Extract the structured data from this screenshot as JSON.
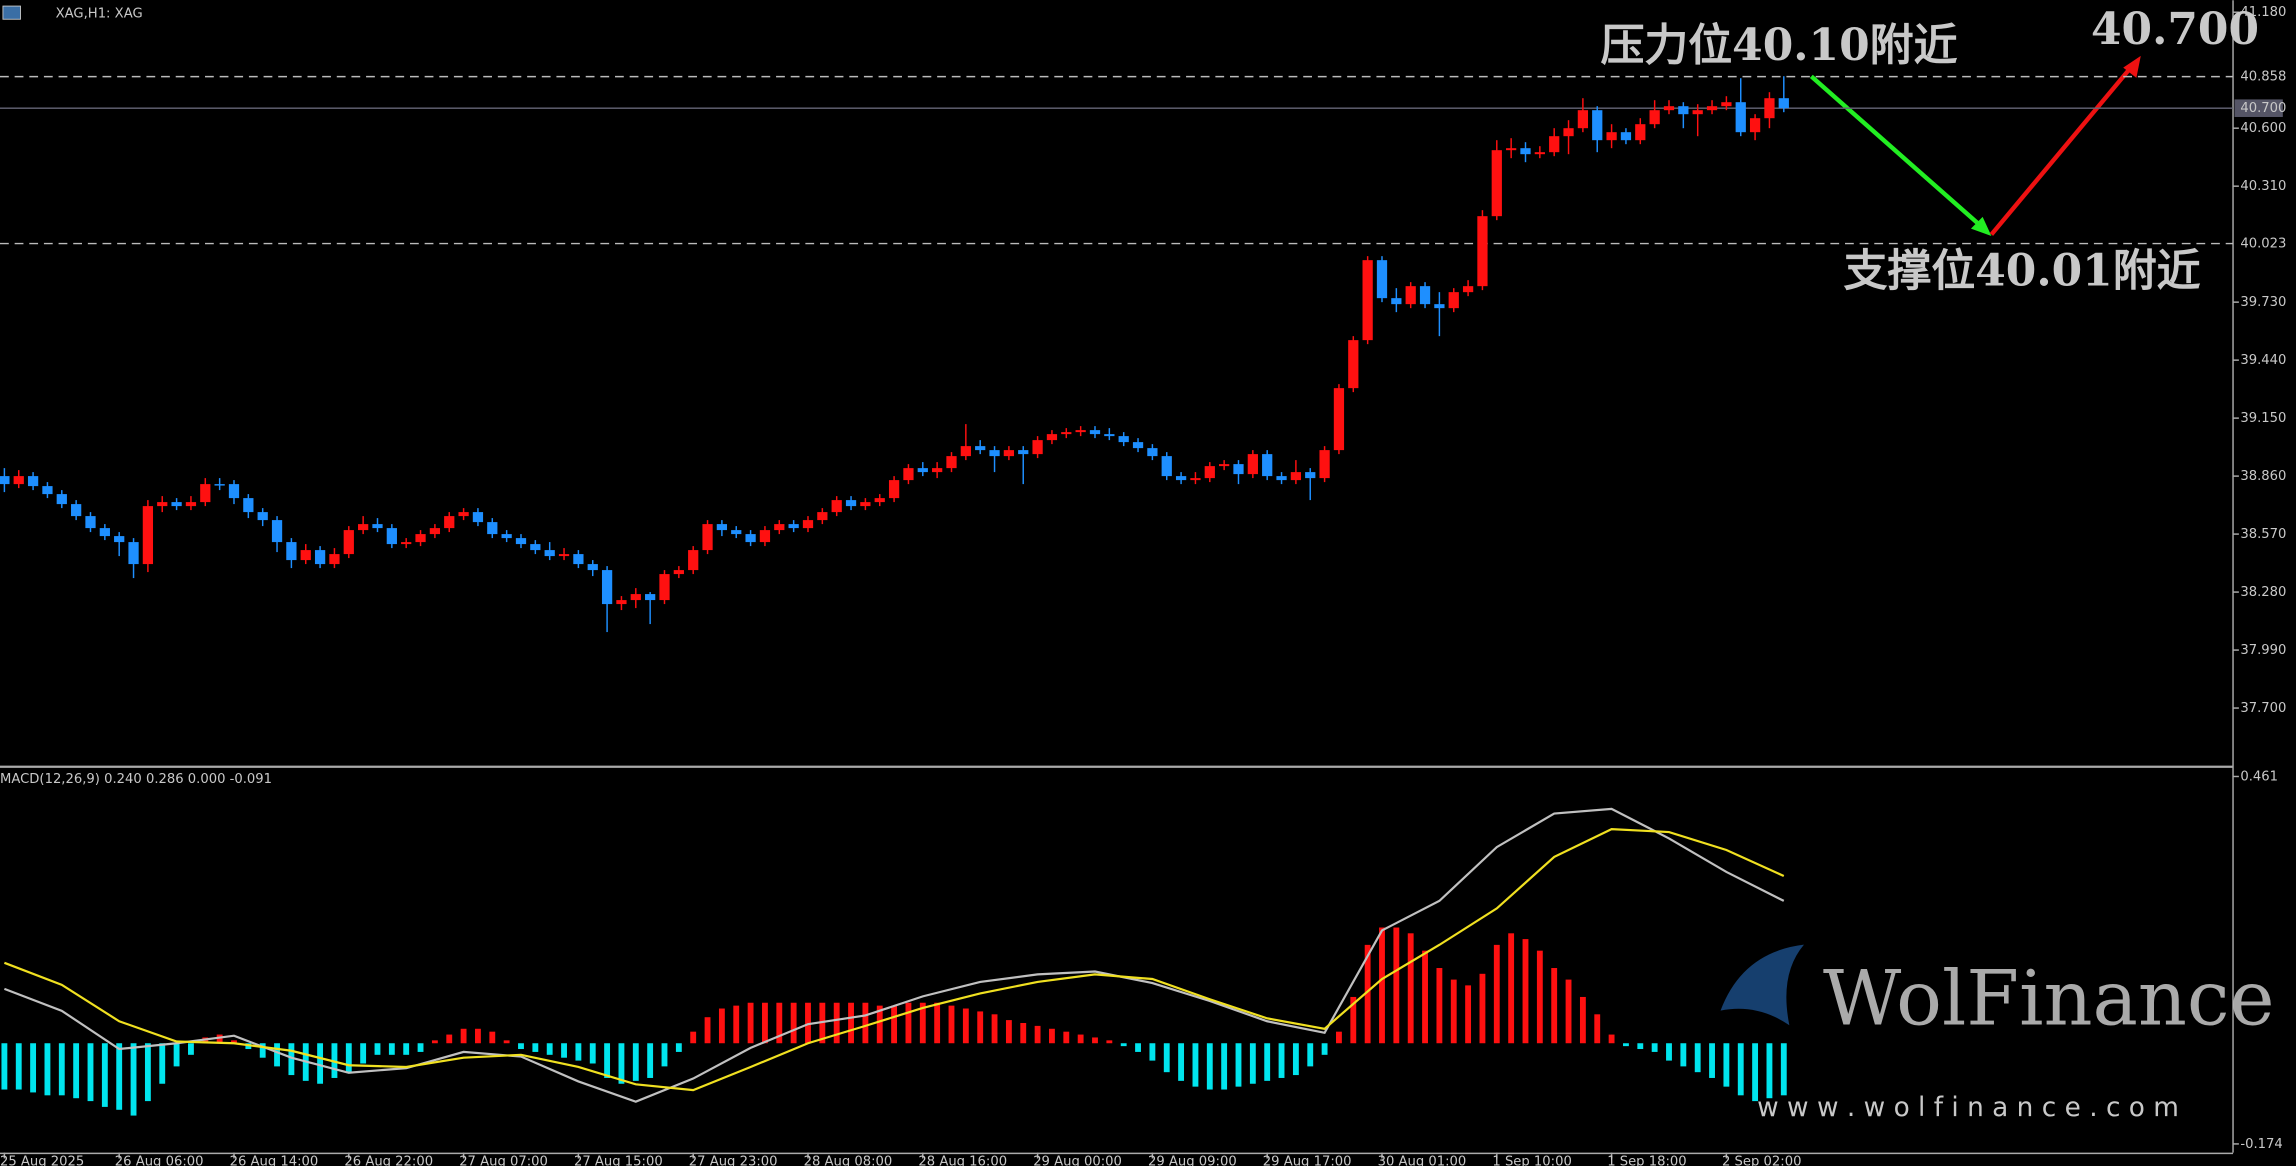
{
  "chart_data": [
    {
      "type": "candlestick",
      "title": "XAG,H1: XAG",
      "categories": [
        "25 Aug 2025",
        null,
        null,
        null,
        null,
        null,
        null,
        null,
        "26 Aug 06:00",
        null,
        null,
        null,
        null,
        null,
        null,
        null,
        "26 Aug 14:00",
        null,
        null,
        null,
        null,
        null,
        null,
        null,
        "26 Aug 22:00",
        null,
        null,
        null,
        null,
        null,
        null,
        null,
        "27 Aug 07:00",
        null,
        null,
        null,
        null,
        null,
        null,
        null,
        "27 Aug 15:00",
        null,
        null,
        null,
        null,
        null,
        null,
        null,
        "27 Aug 23:00",
        null,
        null,
        null,
        null,
        null,
        null,
        null,
        "28 Aug 08:00",
        null,
        null,
        null,
        null,
        null,
        null,
        null,
        "28 Aug 16:00",
        null,
        null,
        null,
        null,
        null,
        null,
        null,
        "29 Aug 00:00",
        null,
        null,
        null,
        null,
        null,
        null,
        null,
        "29 Aug 09:00",
        null,
        null,
        null,
        null,
        null,
        null,
        null,
        "29 Aug 17:00",
        null,
        null,
        null,
        null,
        null,
        null,
        null,
        "30 Aug 01:00",
        null,
        null,
        null,
        null,
        null,
        null,
        null,
        "1 Sep 10:00",
        null,
        null,
        null,
        null,
        null,
        null,
        null,
        "1 Sep 18:00",
        null,
        null,
        null,
        null,
        null,
        null,
        null,
        "2 Sep 02:00",
        null,
        null,
        null,
        null
      ],
      "ohlc": [
        [
          38.86,
          38.9,
          38.78,
          38.82
        ],
        [
          38.82,
          38.89,
          38.8,
          38.86
        ],
        [
          38.86,
          38.88,
          38.79,
          38.81
        ],
        [
          38.81,
          38.83,
          38.75,
          38.77
        ],
        [
          38.77,
          38.79,
          38.7,
          38.72
        ],
        [
          38.72,
          38.74,
          38.64,
          38.66
        ],
        [
          38.66,
          38.68,
          38.58,
          38.6
        ],
        [
          38.6,
          38.62,
          38.54,
          38.56
        ],
        [
          38.56,
          38.58,
          38.46,
          38.53
        ],
        [
          38.53,
          38.55,
          38.35,
          38.42
        ],
        [
          38.42,
          38.74,
          38.38,
          38.71
        ],
        [
          38.71,
          38.76,
          38.68,
          38.73
        ],
        [
          38.73,
          38.75,
          38.69,
          38.71
        ],
        [
          38.71,
          38.76,
          38.69,
          38.73
        ],
        [
          38.73,
          38.85,
          38.71,
          38.82
        ],
        [
          38.82,
          38.85,
          38.79,
          38.82
        ],
        [
          38.82,
          38.84,
          38.72,
          38.75
        ],
        [
          38.75,
          38.77,
          38.65,
          38.68
        ],
        [
          38.68,
          38.7,
          38.61,
          38.64
        ],
        [
          38.64,
          38.66,
          38.48,
          38.53
        ],
        [
          38.53,
          38.55,
          38.4,
          38.44
        ],
        [
          38.44,
          38.52,
          38.42,
          38.49
        ],
        [
          38.49,
          38.51,
          38.4,
          38.42
        ],
        [
          38.42,
          38.5,
          38.4,
          38.47
        ],
        [
          38.47,
          38.61,
          38.45,
          38.59
        ],
        [
          38.59,
          38.66,
          38.57,
          38.62
        ],
        [
          38.62,
          38.65,
          38.58,
          38.6
        ],
        [
          38.6,
          38.62,
          38.5,
          38.52
        ],
        [
          38.52,
          38.55,
          38.5,
          38.53
        ],
        [
          38.53,
          38.59,
          38.51,
          38.57
        ],
        [
          38.57,
          38.62,
          38.55,
          38.6
        ],
        [
          38.6,
          38.68,
          38.58,
          38.66
        ],
        [
          38.66,
          38.7,
          38.64,
          38.68
        ],
        [
          38.68,
          38.7,
          38.61,
          38.63
        ],
        [
          38.63,
          38.65,
          38.55,
          38.57
        ],
        [
          38.57,
          38.59,
          38.53,
          38.55
        ],
        [
          38.55,
          38.57,
          38.5,
          38.52
        ],
        [
          38.52,
          38.54,
          38.47,
          38.49
        ],
        [
          38.49,
          38.53,
          38.44,
          38.46
        ],
        [
          38.46,
          38.5,
          38.44,
          38.47
        ],
        [
          38.47,
          38.49,
          38.4,
          38.42
        ],
        [
          38.42,
          38.44,
          38.36,
          38.39
        ],
        [
          38.39,
          38.41,
          38.08,
          38.22
        ],
        [
          38.22,
          38.26,
          38.19,
          38.24
        ],
        [
          38.24,
          38.3,
          38.2,
          38.27
        ],
        [
          38.27,
          38.28,
          38.12,
          38.24
        ],
        [
          38.24,
          38.39,
          38.22,
          38.37
        ],
        [
          38.37,
          38.41,
          38.35,
          38.39
        ],
        [
          38.39,
          38.51,
          38.37,
          38.49
        ],
        [
          38.49,
          38.64,
          38.47,
          38.62
        ],
        [
          38.62,
          38.64,
          38.56,
          38.59
        ],
        [
          38.59,
          38.61,
          38.55,
          38.57
        ],
        [
          38.57,
          38.59,
          38.51,
          38.53
        ],
        [
          38.53,
          38.61,
          38.51,
          38.59
        ],
        [
          38.59,
          38.64,
          38.57,
          38.62
        ],
        [
          38.62,
          38.64,
          38.58,
          38.6
        ],
        [
          38.6,
          38.66,
          38.58,
          38.64
        ],
        [
          38.64,
          38.7,
          38.62,
          38.68
        ],
        [
          38.68,
          38.76,
          38.66,
          38.74
        ],
        [
          38.74,
          38.76,
          38.69,
          38.71
        ],
        [
          38.71,
          38.75,
          38.69,
          38.73
        ],
        [
          38.73,
          38.77,
          38.71,
          38.75
        ],
        [
          38.75,
          38.86,
          38.73,
          38.84
        ],
        [
          38.84,
          38.92,
          38.82,
          38.9
        ],
        [
          38.9,
          38.93,
          38.86,
          38.88
        ],
        [
          38.88,
          38.93,
          38.85,
          38.9
        ],
        [
          38.9,
          38.98,
          38.88,
          38.96
        ],
        [
          38.96,
          39.12,
          38.94,
          39.01
        ],
        [
          39.01,
          39.04,
          38.97,
          38.99
        ],
        [
          38.99,
          39.01,
          38.88,
          38.96
        ],
        [
          38.96,
          39.01,
          38.94,
          38.99
        ],
        [
          38.99,
          39.01,
          38.82,
          38.97
        ],
        [
          38.97,
          39.06,
          38.95,
          39.04
        ],
        [
          39.04,
          39.09,
          39.02,
          39.07
        ],
        [
          39.07,
          39.1,
          39.05,
          39.08
        ],
        [
          39.08,
          39.11,
          39.06,
          39.09
        ],
        [
          39.09,
          39.11,
          39.05,
          39.07
        ],
        [
          39.07,
          39.1,
          39.04,
          39.06
        ],
        [
          39.06,
          39.08,
          39.01,
          39.03
        ],
        [
          39.03,
          39.05,
          38.98,
          39.0
        ],
        [
          39.0,
          39.02,
          38.94,
          38.96
        ],
        [
          38.96,
          38.98,
          38.84,
          38.86
        ],
        [
          38.86,
          38.88,
          38.82,
          38.84
        ],
        [
          38.84,
          38.88,
          38.82,
          38.85
        ],
        [
          38.85,
          38.93,
          38.83,
          38.91
        ],
        [
          38.91,
          38.94,
          38.89,
          38.92
        ],
        [
          38.92,
          38.94,
          38.82,
          38.87
        ],
        [
          38.87,
          38.99,
          38.85,
          38.97
        ],
        [
          38.97,
          38.99,
          38.84,
          38.86
        ],
        [
          38.86,
          38.88,
          38.82,
          38.84
        ],
        [
          38.84,
          38.94,
          38.82,
          38.88
        ],
        [
          38.88,
          38.9,
          38.74,
          38.85
        ],
        [
          38.85,
          39.01,
          38.83,
          38.99
        ],
        [
          38.99,
          39.32,
          38.97,
          39.3
        ],
        [
          39.3,
          39.56,
          39.28,
          39.54
        ],
        [
          39.54,
          39.96,
          39.52,
          39.94
        ],
        [
          39.94,
          39.96,
          39.73,
          39.75
        ],
        [
          39.75,
          39.8,
          39.68,
          39.72
        ],
        [
          39.72,
          39.83,
          39.7,
          39.81
        ],
        [
          39.81,
          39.83,
          39.7,
          39.72
        ],
        [
          39.72,
          39.78,
          39.56,
          39.7
        ],
        [
          39.7,
          39.8,
          39.68,
          39.78
        ],
        [
          39.78,
          39.84,
          39.76,
          39.81
        ],
        [
          39.81,
          40.19,
          39.79,
          40.16
        ],
        [
          40.16,
          40.54,
          40.14,
          40.49
        ],
        [
          40.49,
          40.55,
          40.45,
          40.5
        ],
        [
          40.5,
          40.53,
          40.43,
          40.47
        ],
        [
          40.47,
          40.51,
          40.45,
          40.48
        ],
        [
          40.48,
          40.6,
          40.46,
          40.56
        ],
        [
          40.56,
          40.64,
          40.47,
          40.6
        ],
        [
          40.6,
          40.75,
          40.58,
          40.69
        ],
        [
          40.69,
          40.71,
          40.48,
          40.54
        ],
        [
          40.54,
          40.62,
          40.5,
          40.58
        ],
        [
          40.58,
          40.6,
          40.52,
          40.54
        ],
        [
          40.54,
          40.65,
          40.52,
          40.62
        ],
        [
          40.62,
          40.74,
          40.6,
          40.69
        ],
        [
          40.69,
          40.74,
          40.67,
          40.71
        ],
        [
          40.71,
          40.73,
          40.6,
          40.67
        ],
        [
          40.67,
          40.72,
          40.56,
          40.69
        ],
        [
          40.69,
          40.74,
          40.67,
          40.71
        ],
        [
          40.71,
          40.76,
          40.69,
          40.73
        ],
        [
          40.73,
          40.85,
          40.56,
          40.58
        ],
        [
          40.58,
          40.67,
          40.54,
          40.65
        ],
        [
          40.65,
          40.78,
          40.6,
          40.75
        ],
        [
          40.75,
          40.86,
          40.68,
          40.7
        ]
      ],
      "up_color": "#ff1010",
      "down_color": "#1e8fff",
      "ylim": [
        37.41,
        41.24
      ],
      "yticks": [
        {
          "value": 41.18,
          "label": "41.180"
        },
        {
          "value": 40.6,
          "label": "40.600"
        },
        {
          "value": 40.31,
          "label": "40.310"
        },
        {
          "value": 39.73,
          "label": "39.730"
        },
        {
          "value": 39.44,
          "label": "39.440"
        },
        {
          "value": 39.15,
          "label": "39.150"
        },
        {
          "value": 38.86,
          "label": "38.860"
        },
        {
          "value": 38.57,
          "label": "38.570"
        },
        {
          "value": 38.28,
          "label": "38.280"
        },
        {
          "value": 37.99,
          "label": "37.990"
        },
        {
          "value": 37.7,
          "label": "37.700"
        }
      ],
      "levels": [
        {
          "value": 40.858,
          "label": "40.858",
          "dashed": true
        },
        {
          "value": 40.7,
          "label": "40.700",
          "dashed": false
        },
        {
          "value": 40.023,
          "label": "40.023",
          "dashed": true
        }
      ],
      "annotations": [
        {
          "text": "压力位40.10附近",
          "color": "#ffffff"
        },
        {
          "text": "支撑位40.01附近",
          "color": "#ff1a1a"
        },
        {
          "text": "40.700",
          "color": "#7fff00"
        }
      ]
    },
    {
      "type": "macd",
      "title": "MACD(12,26,9) 0.240 0.286 0.000 -0.091",
      "values": [
        -0.08,
        -0.08,
        -0.085,
        -0.09,
        -0.09,
        -0.095,
        -0.1,
        -0.11,
        -0.115,
        -0.125,
        -0.1,
        -0.07,
        -0.04,
        -0.02,
        0.01,
        0.015,
        0.005,
        -0.01,
        -0.025,
        -0.04,
        -0.055,
        -0.065,
        -0.07,
        -0.06,
        -0.05,
        -0.035,
        -0.02,
        -0.02,
        -0.02,
        -0.015,
        0.005,
        0.015,
        0.025,
        0.025,
        0.02,
        0.005,
        -0.01,
        -0.015,
        -0.02,
        -0.025,
        -0.03,
        -0.035,
        -0.06,
        -0.07,
        -0.065,
        -0.06,
        -0.04,
        -0.015,
        0.02,
        0.045,
        0.06,
        0.065,
        0.07,
        0.07,
        0.07,
        0.07,
        0.07,
        0.07,
        0.07,
        0.07,
        0.07,
        0.065,
        0.065,
        0.07,
        0.07,
        0.07,
        0.065,
        0.06,
        0.055,
        0.05,
        0.04,
        0.035,
        0.03,
        0.025,
        0.02,
        0.015,
        0.01,
        0.005,
        -0.005,
        -0.015,
        -0.03,
        -0.05,
        -0.065,
        -0.075,
        -0.08,
        -0.08,
        -0.075,
        -0.07,
        -0.065,
        -0.06,
        -0.055,
        -0.04,
        -0.02,
        0.02,
        0.08,
        0.17,
        0.2,
        0.2,
        0.19,
        0.16,
        0.13,
        0.11,
        0.1,
        0.12,
        0.17,
        0.19,
        0.18,
        0.16,
        0.13,
        0.11,
        0.08,
        0.05,
        0.015,
        -0.005,
        -0.01,
        -0.015,
        -0.03,
        -0.04,
        -0.05,
        -0.06,
        -0.075,
        -0.09,
        -0.1,
        -0.095,
        -0.09
      ],
      "up_color": "#ff1010",
      "down_color": "#00e5ee",
      "series": [
        {
          "color": "#c0c0c0",
          "x": [
            0,
            4,
            8,
            12,
            16,
            20,
            24,
            28,
            32,
            36,
            40,
            44,
            48,
            52,
            56,
            60,
            64,
            68,
            72,
            76,
            80,
            84,
            88,
            92,
            96,
            100,
            104,
            108,
            112,
            116,
            120,
            124
          ],
          "values": [
            0.094,
            0.056,
            -0.01,
            0,
            0.013,
            -0.025,
            -0.051,
            -0.043,
            -0.015,
            -0.023,
            -0.066,
            -0.101,
            -0.061,
            -0.008,
            0.033,
            0.048,
            0.081,
            0.106,
            0.119,
            0.124,
            0.104,
            0.073,
            0.038,
            0.018,
            0.195,
            0.246,
            0.339,
            0.397,
            0.405,
            0.354,
            0.296,
            0.246
          ]
        },
        {
          "color": "#f0e020",
          "x": [
            0,
            4,
            8,
            12,
            16,
            20,
            24,
            28,
            32,
            36,
            40,
            44,
            48,
            52,
            56,
            60,
            64,
            68,
            72,
            76,
            80,
            84,
            88,
            92,
            96,
            100,
            104,
            108,
            112,
            116,
            120,
            124
          ],
          "values": [
            0.139,
            0.101,
            0.038,
            0.003,
            0,
            -0.013,
            -0.038,
            -0.041,
            -0.025,
            -0.02,
            -0.041,
            -0.071,
            -0.081,
            -0.041,
            0,
            0.03,
            0.061,
            0.086,
            0.106,
            0.119,
            0.111,
            0.076,
            0.043,
            0.025,
            0.111,
            0.17,
            0.233,
            0.322,
            0.37,
            0.365,
            0.334,
            0.289
          ]
        }
      ],
      "ylim": [
        -0.189,
        0.474
      ],
      "yticks": [
        {
          "value": 0.461,
          "label": "0.461"
        },
        {
          "value": -0.174,
          "label": "-0.174"
        }
      ],
      "watermark": [
        "WolFinance",
        "w w w . w o l f i n a n c e . c o m"
      ]
    }
  ]
}
